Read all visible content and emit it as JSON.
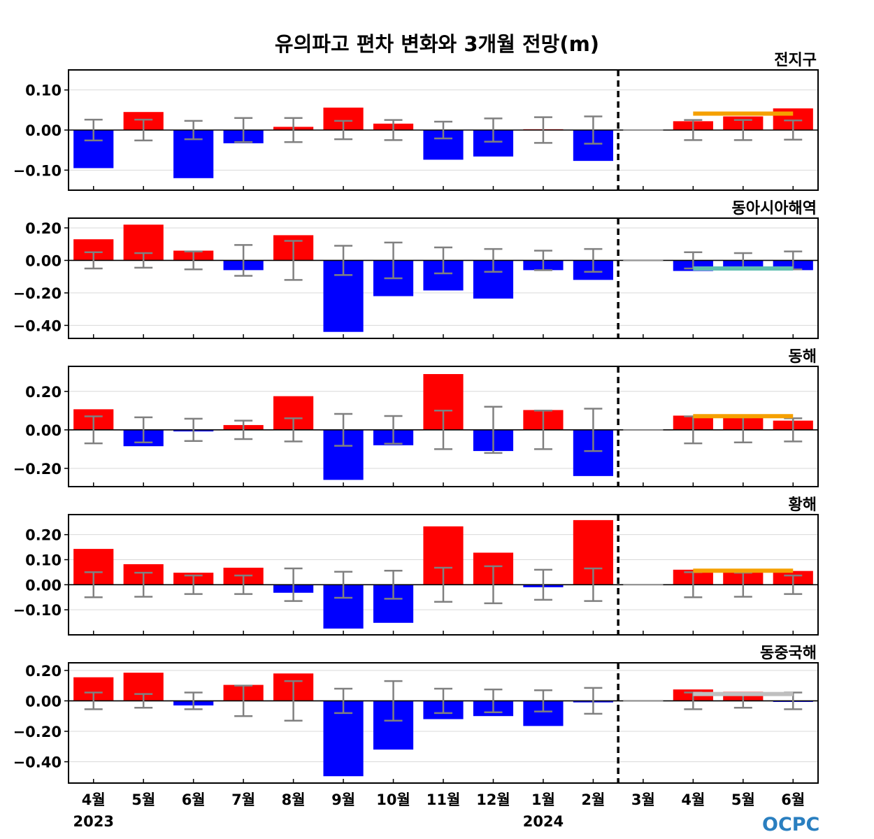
{
  "title": "유의파고 편차 변화와 3개월 전망(m)",
  "logo_text": "OCPC",
  "colors": {
    "positive": "#ff0000",
    "negative": "#0000ff",
    "error_bar": "#808080",
    "forecast_line_orange": "#f5a000",
    "forecast_line_teal": "#5fbfb0",
    "forecast_line_gray": "#bfbfbf",
    "grid": "#d9d9d9",
    "logo": "#2a7fc0"
  },
  "chart_data": {
    "type": "bar",
    "categories": [
      "4월",
      "5월",
      "6월",
      "7월",
      "8월",
      "9월",
      "10월",
      "11월",
      "12월",
      "1월",
      "2월",
      "3월",
      "4월",
      "5월",
      "6월"
    ],
    "year_labels": [
      {
        "category_index": 0,
        "label": "2023"
      },
      {
        "category_index": 9,
        "label": "2024"
      }
    ],
    "forecast_divider_index": 11,
    "grid": true,
    "panels": [
      {
        "name": "전지구",
        "ylim": [
          -0.15,
          0.15
        ],
        "yticks": [
          0.1,
          0.0,
          -0.1
        ],
        "ytick_labels": [
          "0.10",
          "0.00",
          "−0.10"
        ],
        "values": [
          -0.095,
          0.045,
          -0.12,
          -0.033,
          0.008,
          0.056,
          0.016,
          -0.074,
          -0.066,
          0.002,
          -0.077,
          0.0,
          0.022,
          0.034,
          0.054
        ],
        "error": [
          0.026,
          0.026,
          0.023,
          0.03,
          0.03,
          0.023,
          0.025,
          0.021,
          0.029,
          0.032,
          0.034,
          null,
          0.025,
          0.025,
          0.024
        ],
        "forecast_line": {
          "value": 0.041,
          "from_index": 12,
          "to_index": 14,
          "color": "orange"
        }
      },
      {
        "name": "동아시아해역",
        "ylim": [
          -0.48,
          0.26
        ],
        "yticks": [
          0.2,
          0.0,
          -0.2,
          -0.4
        ],
        "ytick_labels": [
          "0.20",
          "0.00",
          "−0.20",
          "−0.40"
        ],
        "values": [
          0.13,
          0.22,
          0.06,
          -0.06,
          0.155,
          -0.44,
          -0.22,
          -0.185,
          -0.235,
          -0.06,
          -0.12,
          0.0,
          -0.065,
          -0.04,
          -0.06
        ],
        "error": [
          0.05,
          0.045,
          0.055,
          0.095,
          0.12,
          0.09,
          0.11,
          0.08,
          0.07,
          0.06,
          0.07,
          null,
          0.05,
          0.045,
          0.055
        ],
        "forecast_line": {
          "value": -0.05,
          "from_index": 12,
          "to_index": 14,
          "color": "teal"
        }
      },
      {
        "name": "동해",
        "ylim": [
          -0.295,
          0.33
        ],
        "yticks": [
          0.2,
          0.0,
          -0.2
        ],
        "ytick_labels": [
          "0.20",
          "0.00",
          "−0.20"
        ],
        "values": [
          0.107,
          -0.085,
          -0.008,
          0.025,
          0.175,
          -0.26,
          -0.08,
          0.29,
          -0.11,
          0.103,
          -0.24,
          0.0,
          0.074,
          0.08,
          0.048
        ],
        "error": [
          0.07,
          0.065,
          0.058,
          0.048,
          0.06,
          0.083,
          0.072,
          0.1,
          0.12,
          0.1,
          0.11,
          null,
          0.07,
          0.065,
          0.06
        ],
        "forecast_line": {
          "value": 0.071,
          "from_index": 12,
          "to_index": 14,
          "color": "orange"
        }
      },
      {
        "name": "황해",
        "ylim": [
          -0.2,
          0.28
        ],
        "yticks": [
          0.2,
          0.1,
          0.0,
          -0.1
        ],
        "ytick_labels": [
          "0.20",
          "0.10",
          "0.00",
          "−0.10"
        ],
        "values": [
          0.143,
          0.082,
          0.048,
          0.068,
          -0.032,
          -0.175,
          -0.152,
          0.233,
          0.128,
          -0.01,
          0.258,
          0.0,
          0.06,
          0.05,
          0.055
        ],
        "error": [
          0.05,
          0.048,
          0.037,
          0.037,
          0.065,
          0.052,
          0.056,
          0.068,
          0.074,
          0.06,
          0.065,
          null,
          0.05,
          0.048,
          0.037
        ],
        "forecast_line": {
          "value": 0.056,
          "from_index": 12,
          "to_index": 14,
          "color": "orange"
        }
      },
      {
        "name": "동중국해",
        "ylim": [
          -0.54,
          0.25
        ],
        "yticks": [
          0.2,
          0.0,
          -0.2,
          -0.4
        ],
        "ytick_labels": [
          "0.20",
          "0.00",
          "−0.20",
          "−0.40"
        ],
        "values": [
          0.155,
          0.185,
          -0.03,
          0.105,
          0.18,
          -0.495,
          -0.32,
          -0.12,
          -0.1,
          -0.165,
          -0.01,
          0.0,
          0.075,
          0.06,
          -0.005
        ],
        "error": [
          0.055,
          0.045,
          0.055,
          0.1,
          0.13,
          0.08,
          0.13,
          0.08,
          0.075,
          0.07,
          0.085,
          null,
          0.055,
          0.045,
          0.055
        ],
        "forecast_line": {
          "value": 0.045,
          "from_index": 12,
          "to_index": 14,
          "color": "gray"
        }
      }
    ]
  }
}
